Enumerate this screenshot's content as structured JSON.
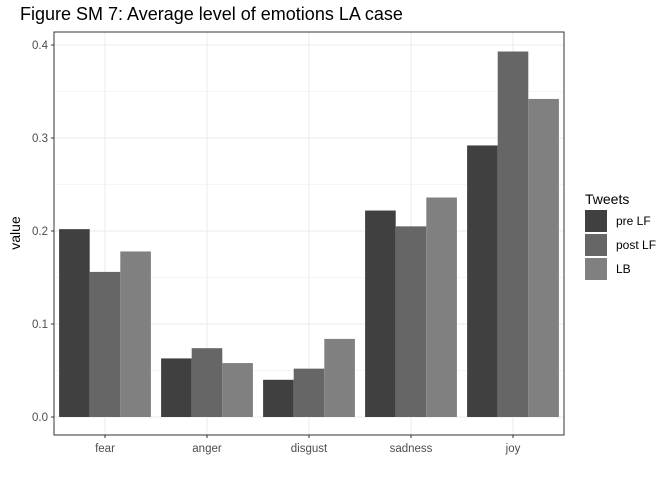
{
  "chart_data": {
    "type": "bar",
    "title": "Figure SM 7: Average level of emotions LA case",
    "xlabel": "",
    "ylabel": "value",
    "ylim": [
      0,
      0.41
    ],
    "yticks": [
      "0.0",
      "0.1",
      "0.2",
      "0.3",
      "0.4"
    ],
    "grid": true,
    "legend_title": "Tweets",
    "legend_position": "right",
    "categories": [
      "fear",
      "anger",
      "disgust",
      "sadness",
      "joy"
    ],
    "series": [
      {
        "name": "pre LF",
        "color": "#404040",
        "values": [
          0.202,
          0.063,
          0.04,
          0.222,
          0.292
        ]
      },
      {
        "name": "post LF",
        "color": "#666666",
        "values": [
          0.156,
          0.074,
          0.052,
          0.205,
          0.393
        ]
      },
      {
        "name": "LB",
        "color": "#808080",
        "values": [
          0.178,
          0.058,
          0.084,
          0.236,
          0.342
        ]
      }
    ]
  }
}
